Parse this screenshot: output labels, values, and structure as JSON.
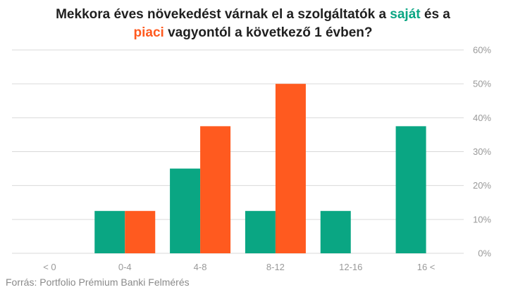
{
  "title": {
    "line1_pre": "Mekkora éves növekedést várnak el a szolgáltatók a ",
    "line1_own": "saját",
    "line1_post": " és a",
    "line2_market": "piaci",
    "line2_post": " vagyontól a következő 1  évben?"
  },
  "source": "Forrás: Portfolio Prémium Banki Felmérés",
  "colors": {
    "own": "#0aa683",
    "market": "#ff5a1f",
    "grid": "#d9d9d9",
    "tick": "#999999"
  },
  "chart_data": {
    "type": "bar",
    "categories": [
      "< 0",
      "0-4",
      "4-8",
      "8-12",
      "12-16",
      "16 <"
    ],
    "series": [
      {
        "values": [
          0,
          12.5,
          25,
          12.5,
          12.5,
          37.5
        ]
      },
      {
        "values": [
          0,
          12.5,
          37.5,
          50,
          0,
          0
        ]
      }
    ],
    "yticks": [
      "0%",
      "10%",
      "20%",
      "30%",
      "40%",
      "50%",
      "60%"
    ],
    "ylim": [
      0,
      60
    ],
    "y_axis_side": "right",
    "grid": true,
    "legend": "none"
  }
}
